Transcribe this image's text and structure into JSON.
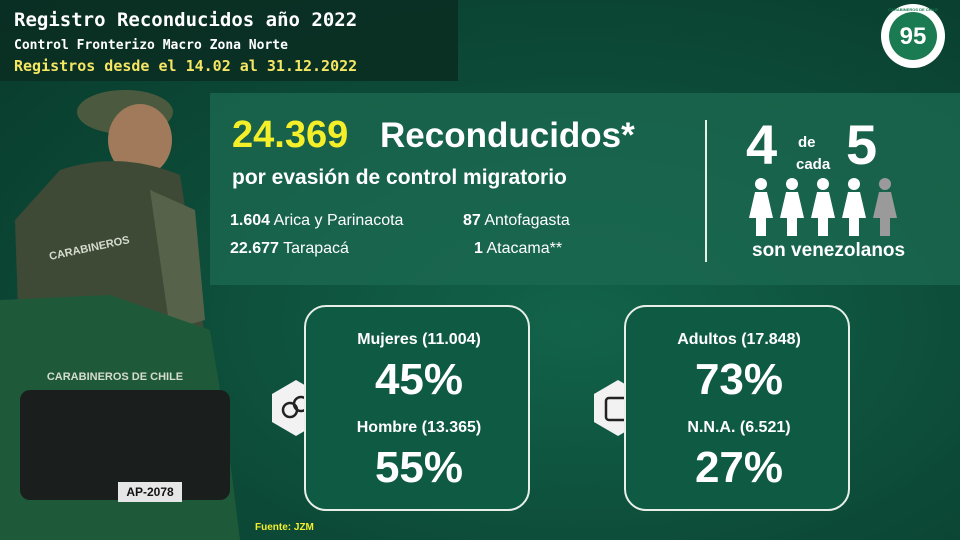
{
  "header": {
    "title": "Registro Reconducidos año 2022",
    "subtitle": "Control Fronterizo Macro Zona Norte",
    "range": "Registros desde el 14.02 al 31.12.2022"
  },
  "logo": {
    "number": "95",
    "text": "CARABINEROS DE CHILE"
  },
  "main": {
    "total": "24.369",
    "label": "Reconducidos*",
    "sublabel": "por evasión de control migratorio",
    "regions": [
      {
        "value": "1.604",
        "name": "Arica y Parinacota"
      },
      {
        "value": "87",
        "name": "Antofagasta"
      },
      {
        "value": "22.677",
        "name": "Tarapacá"
      },
      {
        "value": "1",
        "name": "Atacama**"
      }
    ]
  },
  "ratio": {
    "part": "4",
    "of": "de",
    "each": "cada",
    "whole": "5",
    "label": "son venezolanos"
  },
  "gender": {
    "women_label": "Mujeres (11.004)",
    "women_pct": "45%",
    "men_label": "Hombre (13.365)",
    "men_pct": "55%"
  },
  "age": {
    "adults_label": "Adultos (17.848)",
    "adults_pct": "73%",
    "minors_label": "N.N.A. (6.521)",
    "minors_pct": "27%"
  },
  "photo": {
    "vest": "CARABINEROS",
    "truck": "CARABINEROS DE CHILE",
    "plate": "AP-2078"
  },
  "footer": {
    "source": "Fuente: JZM"
  }
}
